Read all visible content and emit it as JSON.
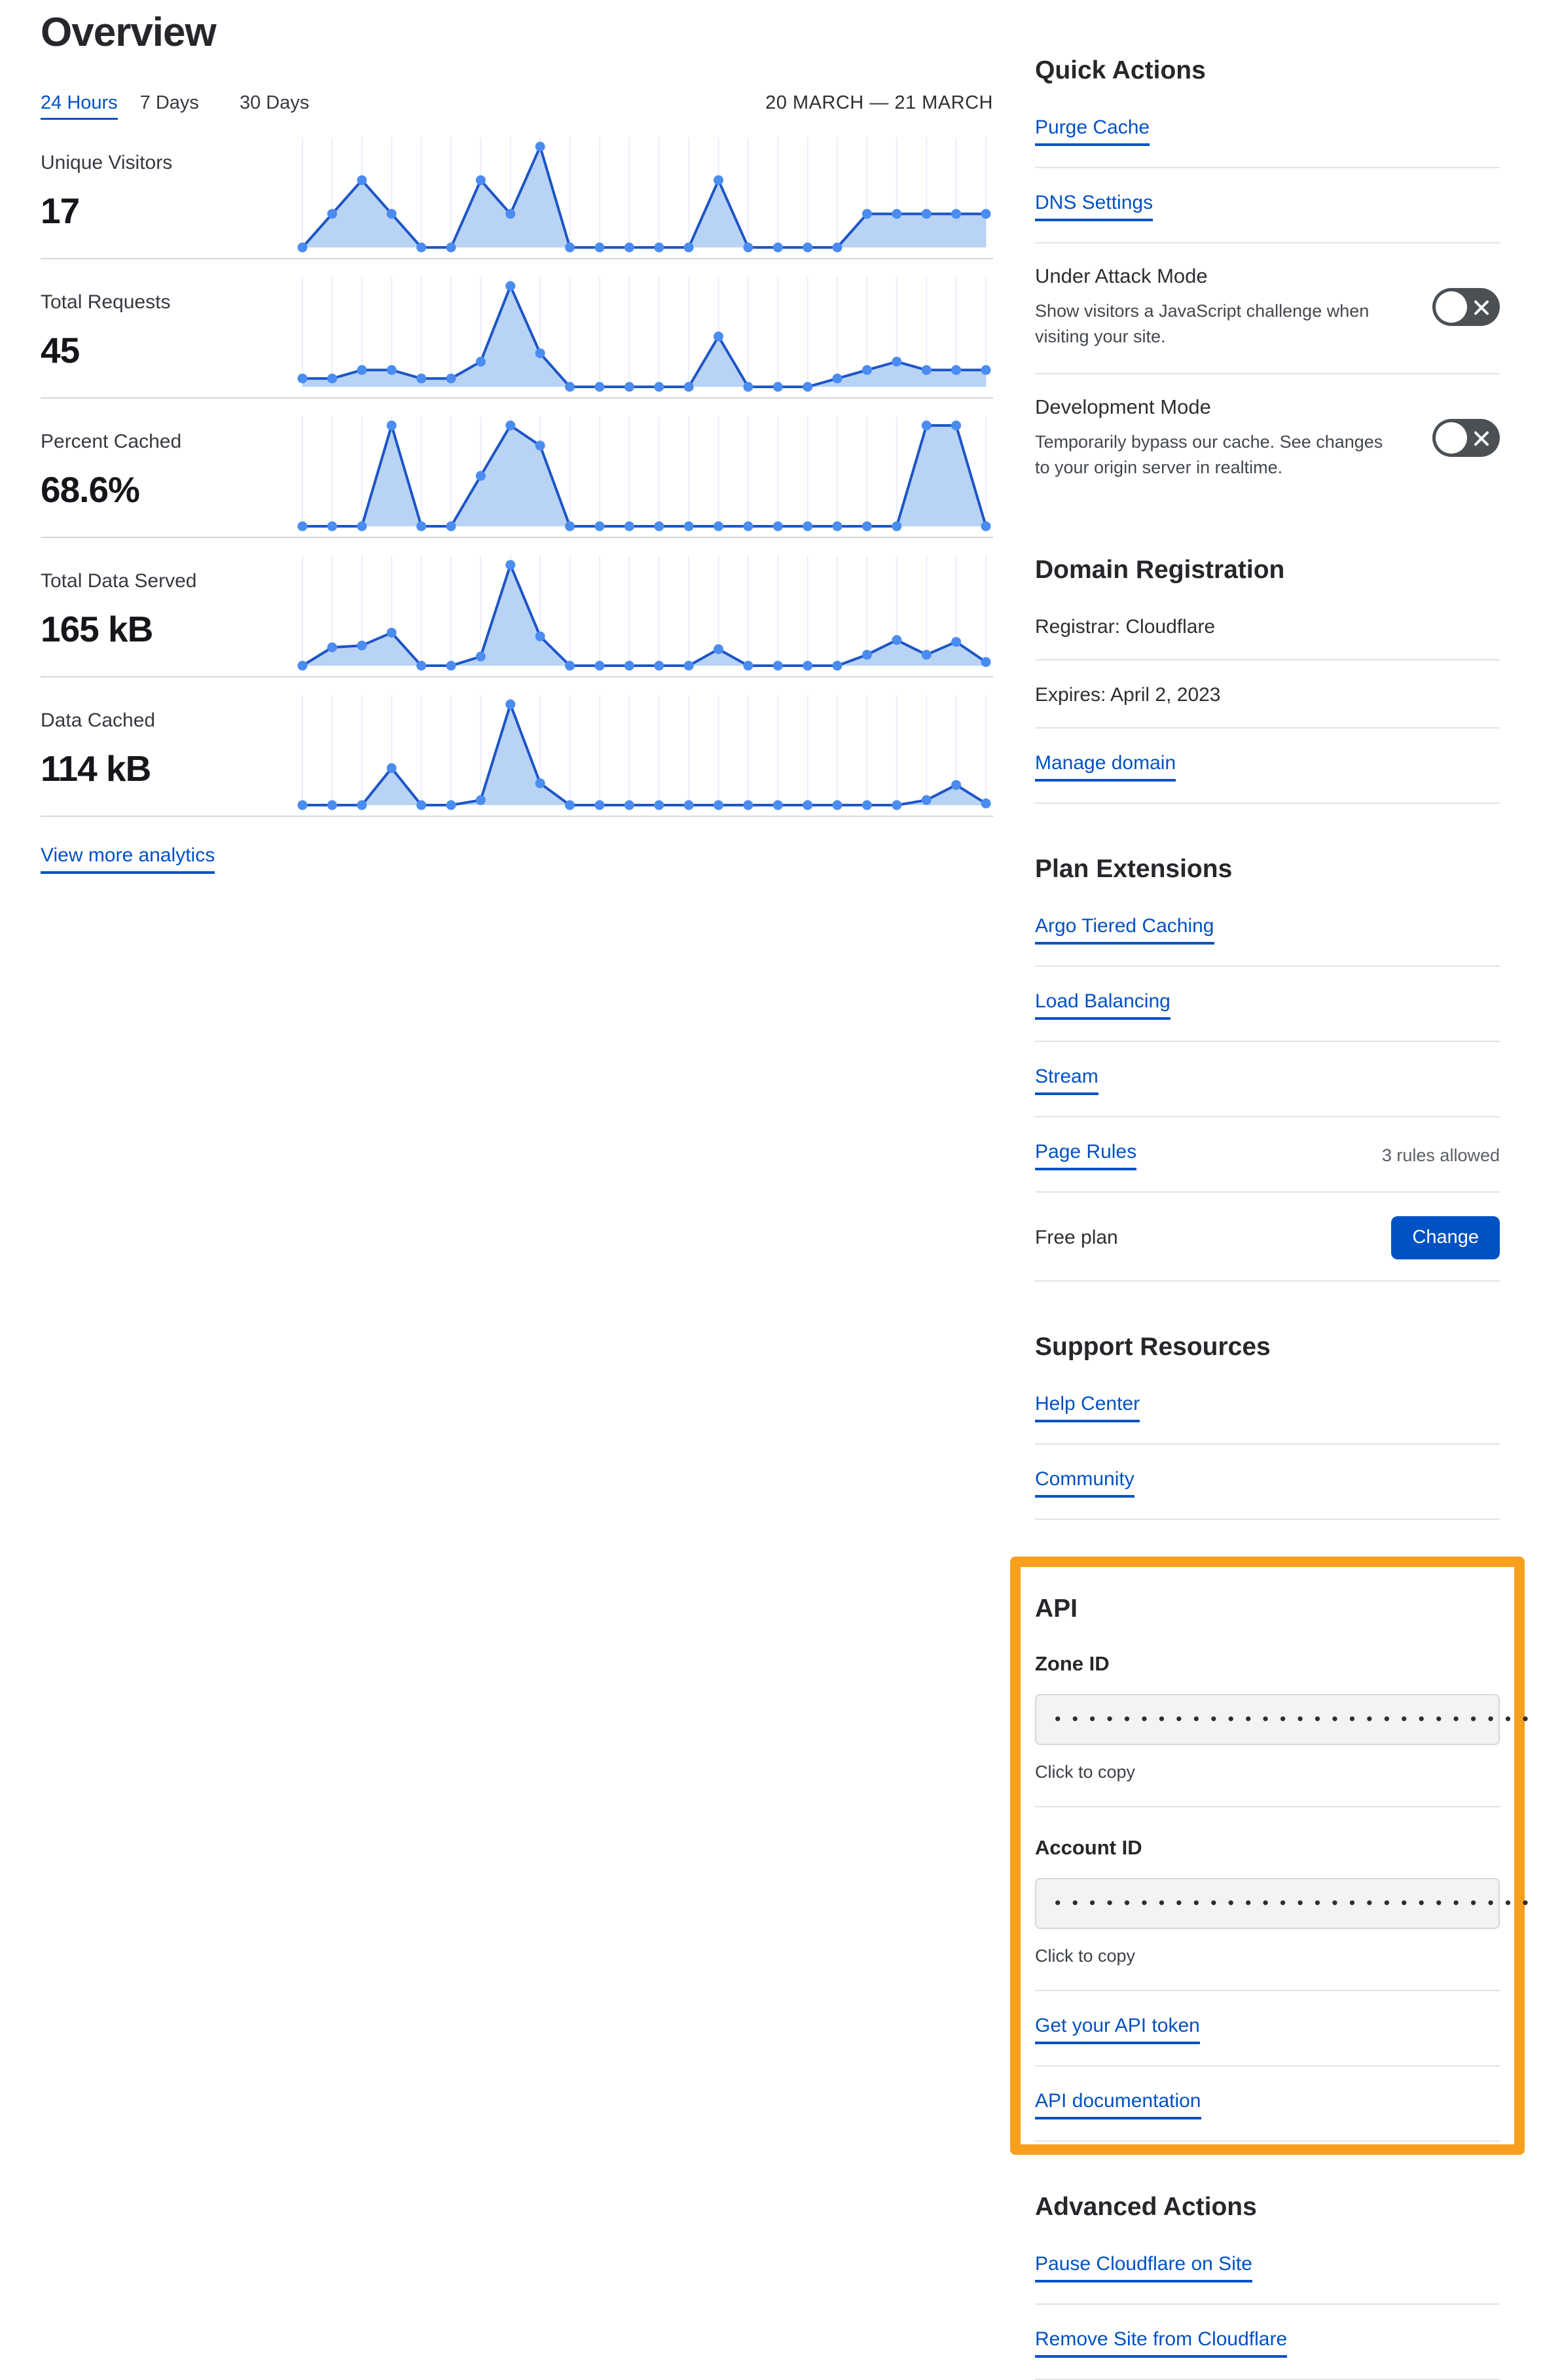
{
  "page": {
    "title": "Overview"
  },
  "tabs": {
    "hours24": "24 Hours",
    "days7": "7 Days",
    "days30": "30 Days",
    "date_range": "20 MARCH — 21 MARCH"
  },
  "metrics": [
    {
      "label": "Unique Visitors",
      "value": "17"
    },
    {
      "label": "Total Requests",
      "value": "45"
    },
    {
      "label": "Percent Cached",
      "value": "68.6%"
    },
    {
      "label": "Total Data Served",
      "value": "165 kB"
    },
    {
      "label": "Data Cached",
      "value": "114 kB"
    }
  ],
  "view_more_label": "View more analytics",
  "chart_style": {
    "line": "#1d55c7",
    "dot": "#4a8cf0",
    "fill": "#b8d3f4",
    "grid": "#e9eef9"
  },
  "chart_data": [
    {
      "type": "area",
      "title": "Unique Visitors",
      "total": 17,
      "x_unit": "hour (last 24 hours)",
      "values": [
        0,
        1,
        2,
        1,
        0,
        0,
        2,
        1,
        3,
        0,
        0,
        0,
        0,
        0,
        2,
        0,
        0,
        0,
        0,
        1,
        1,
        1,
        1,
        1
      ],
      "grid": true,
      "legend": "none"
    },
    {
      "type": "area",
      "title": "Total Requests",
      "total": 45,
      "x_unit": "hour (last 24 hours)",
      "values": [
        1,
        1,
        2,
        2,
        1,
        1,
        3,
        12,
        4,
        0,
        0,
        0,
        0,
        0,
        6,
        0,
        0,
        0,
        1,
        2,
        3,
        2,
        2,
        2
      ],
      "grid": true,
      "legend": "none"
    },
    {
      "type": "area",
      "title": "Percent Cached",
      "total_percent": 68.6,
      "x_unit": "hour (last 24 hours)",
      "values": [
        0,
        0,
        0,
        100,
        0,
        0,
        50,
        100,
        80,
        0,
        0,
        0,
        0,
        0,
        0,
        0,
        0,
        0,
        0,
        0,
        0,
        100,
        100,
        0
      ],
      "grid": true,
      "legend": "none"
    },
    {
      "type": "area",
      "title": "Total Data Served (kB)",
      "total_kb": 165,
      "x_unit": "hour (last 24 hours)",
      "values": [
        0,
        10,
        11,
        18,
        0,
        0,
        5,
        55,
        16,
        0,
        0,
        0,
        0,
        0,
        9,
        0,
        0,
        0,
        0,
        6,
        14,
        6,
        13,
        2
      ],
      "grid": true,
      "legend": "none"
    },
    {
      "type": "area",
      "title": "Data Cached (kB)",
      "total_kb": 114,
      "x_unit": "hour (last 24 hours)",
      "values": [
        0,
        0,
        0,
        22,
        0,
        0,
        3,
        60,
        13,
        0,
        0,
        0,
        0,
        0,
        0,
        0,
        0,
        0,
        0,
        0,
        0,
        3,
        12,
        1
      ],
      "grid": true,
      "legend": "none"
    }
  ],
  "quick_actions": {
    "title": "Quick Actions",
    "links": [
      {
        "label": "Purge Cache"
      },
      {
        "label": "DNS Settings"
      }
    ],
    "toggles": [
      {
        "label": "Under Attack Mode",
        "desc": "Show visitors a JavaScript challenge when visiting your site.",
        "state": "off"
      },
      {
        "label": "Development Mode",
        "desc": "Temporarily bypass our cache. See changes to your origin server in realtime.",
        "state": "off"
      }
    ]
  },
  "domain_registration": {
    "title": "Domain Registration",
    "registrar": "Registrar: Cloudflare",
    "expires": "Expires: April 2, 2023",
    "manage_label": "Manage domain"
  },
  "plan_extensions": {
    "title": "Plan Extensions",
    "links": [
      {
        "label": "Argo Tiered Caching",
        "note": ""
      },
      {
        "label": "Load Balancing",
        "note": ""
      },
      {
        "label": "Stream",
        "note": ""
      },
      {
        "label": "Page Rules",
        "note": "3 rules allowed"
      }
    ],
    "plan_label": "Free plan",
    "change_button": "Change"
  },
  "support": {
    "title": "Support Resources",
    "links": [
      {
        "label": "Help Center"
      },
      {
        "label": "Community"
      }
    ]
  },
  "api": {
    "title": "API",
    "highlight_color": "#f8a01e",
    "fields": [
      {
        "label": "Zone ID",
        "masked_value": "••••••••••••••••••••••••••••",
        "hint": "Click to copy"
      },
      {
        "label": "Account ID",
        "masked_value": "••••••••••••••••••••••••••••",
        "hint": "Click to copy"
      }
    ],
    "links": [
      {
        "label": "Get your API token"
      },
      {
        "label": "API documentation"
      }
    ]
  },
  "advanced": {
    "title": "Advanced Actions",
    "links": [
      {
        "label": "Pause Cloudflare on Site"
      },
      {
        "label": "Remove Site from Cloudflare"
      }
    ]
  },
  "colors": {
    "link_blue": "#0051c3",
    "button_blue": "#0051c3",
    "highlight_orange": "#f8a01e",
    "toggle_gray": "#4b5055"
  }
}
